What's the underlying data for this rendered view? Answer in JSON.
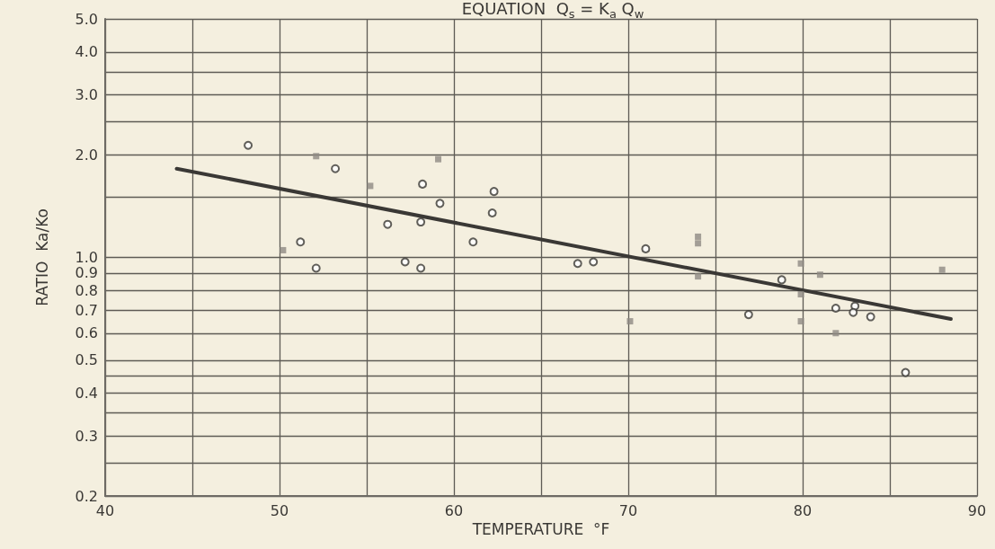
{
  "chart_data": {
    "type": "scatter",
    "title": "EQUATION  Q$_{s}$ = K$_{a}$ Q$_{w}$",
    "xlabel": "TEMPERATURE  °F",
    "ylabel": "RATIO  Ka/Ko",
    "log": "y",
    "grid": true,
    "xlim": [
      40,
      90
    ],
    "ylim": [
      0.2,
      5.0
    ],
    "xticks": [
      40,
      {
        "value": 45,
        "label": null
      },
      50,
      {
        "value": 55,
        "label": null
      },
      60,
      {
        "value": 65,
        "label": null
      },
      70,
      {
        "value": 75,
        "label": null
      },
      80,
      {
        "value": 85,
        "label": null
      },
      90
    ],
    "yticks": [
      {
        "value": 0.2,
        "label": "0.2"
      },
      {
        "value": 0.25,
        "label": null
      },
      {
        "value": 0.3,
        "label": "0.3"
      },
      {
        "value": 0.35,
        "label": null
      },
      {
        "value": 0.4,
        "label": "0.4"
      },
      {
        "value": 0.45,
        "label": null
      },
      {
        "value": 0.5,
        "label": "0.5"
      },
      {
        "value": 0.6,
        "label": "0.6"
      },
      {
        "value": 0.7,
        "label": "0.7"
      },
      {
        "value": 0.8,
        "label": "0.8"
      },
      {
        "value": 0.9,
        "label": "0.9"
      },
      {
        "value": 1,
        "label": "1.0"
      },
      {
        "value": 1.5,
        "label": null
      },
      {
        "value": 2,
        "label": "2.0"
      },
      {
        "value": 2.5,
        "label": null
      },
      {
        "value": 3,
        "label": "3.0"
      },
      {
        "value": 3.5,
        "label": null
      },
      {
        "value": 4,
        "label": "4.0"
      },
      {
        "value": 5,
        "label": "5.0"
      }
    ],
    "series": [
      {
        "marker": "circle",
        "color": "#3a3835",
        "x": [
          48.2,
          53.2,
          58.2,
          59.2,
          62.3,
          62.2,
          56.2,
          58.1,
          51.2,
          61.1,
          52.1,
          57.2,
          58.1,
          67.1,
          68.0,
          71.0,
          76.9,
          78.8,
          81.9,
          83.0,
          82.9,
          83.9,
          85.9
        ],
        "values": [
          2.13,
          1.82,
          1.64,
          1.44,
          1.56,
          1.35,
          1.25,
          1.27,
          1.11,
          1.11,
          0.93,
          0.97,
          0.93,
          0.96,
          0.97,
          1.06,
          0.68,
          0.86,
          0.71,
          0.72,
          0.69,
          0.67,
          0.46
        ]
      },
      {
        "marker": "square",
        "color": "#8f8a83",
        "x": [
          52.1,
          59.1,
          55.2,
          50.2,
          74.0,
          74.0,
          74.0,
          79.9,
          81.0,
          79.9,
          79.9,
          81.9,
          88.0,
          70.1
        ],
        "values": [
          1.98,
          1.94,
          1.62,
          1.05,
          1.15,
          1.1,
          0.88,
          0.96,
          0.89,
          0.78,
          0.65,
          0.6,
          0.92,
          0.65
        ]
      },
      {
        "type": "line",
        "marker": "none",
        "color": "#3a3835",
        "x": [
          44.1,
          88.5
        ],
        "values": [
          1.82,
          0.66
        ]
      }
    ]
  }
}
